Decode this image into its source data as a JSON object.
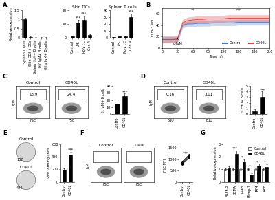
{
  "chart_data": [
    {
      "type": "bar",
      "panel_label": "A",
      "ylabel": "Relative expression",
      "categories": [
        "Spleen T cells",
        "Skin CD8+ DCs",
        "Spleen IgM+ B cells",
        "HK IgM+ B cells",
        "Gills IgM+ B cells"
      ],
      "values": [
        1.0,
        0.06,
        0.02,
        0.02,
        0.02
      ],
      "errors": [
        0.08,
        0.02,
        0.01,
        0.01,
        0.01
      ],
      "color": "#000000",
      "ylim": [
        0,
        1.5
      ],
      "yticks": [
        0,
        0.5,
        1,
        1.5
      ]
    },
    {
      "type": "bar",
      "title": "Skin DCs",
      "categories": [
        "Control",
        "LPS",
        "Poly I:C",
        "Con A"
      ],
      "values": [
        1,
        11,
        13,
        2
      ],
      "errors": [
        0.3,
        2,
        3,
        0.5
      ],
      "significance": [
        null,
        "***",
        "***",
        null
      ],
      "color": "#000000",
      "ylim": [
        0,
        20
      ],
      "yticks": [
        0,
        10,
        20
      ]
    },
    {
      "type": "bar",
      "title": "Spleen T cells",
      "categories": [
        "Control",
        "LPS",
        "Poly I:C",
        "Con A"
      ],
      "values": [
        1,
        2,
        2.5,
        30
      ],
      "errors": [
        0.2,
        0.5,
        0.6,
        5
      ],
      "significance": [
        null,
        null,
        null,
        "***"
      ],
      "color": "#000000",
      "ylim": [
        0,
        40
      ],
      "yticks": [
        0,
        10,
        20,
        30,
        40
      ]
    },
    {
      "type": "line",
      "panel_label": "B",
      "xlabel": "Time (s)",
      "ylabel": "Fluo-3 MFI",
      "x": [
        0,
        10,
        20,
        30,
        40,
        50,
        60,
        70,
        80,
        90,
        100,
        110,
        120,
        130,
        140,
        150,
        160,
        170,
        180,
        190,
        200,
        210
      ],
      "series": [
        {
          "name": "Control",
          "color": "#4a78c2",
          "values": [
            15,
            15,
            15,
            15,
            40,
            42,
            42,
            43,
            43,
            43,
            44,
            44,
            44,
            44,
            44,
            45,
            45,
            45,
            45,
            45,
            45,
            45
          ],
          "errors": [
            5,
            5,
            5,
            5,
            5,
            5,
            5,
            5,
            5,
            5,
            5,
            5,
            5,
            5,
            5,
            5,
            5,
            5,
            5,
            5,
            5,
            5
          ]
        },
        {
          "name": "CD40L",
          "color": "#e03a3a",
          "values": [
            15,
            15,
            15,
            16,
            44,
            48,
            49,
            50,
            50,
            51,
            51,
            51,
            51,
            52,
            52,
            52,
            52,
            52,
            52,
            52,
            52,
            52
          ],
          "errors": [
            6,
            6,
            6,
            6,
            6,
            6,
            6,
            6,
            6,
            6,
            6,
            6,
            6,
            6,
            6,
            6,
            6,
            6,
            6,
            6,
            6,
            6
          ]
        }
      ],
      "xlim": [
        0,
        210
      ],
      "xticks": [
        0,
        30,
        60,
        90,
        120,
        150,
        180,
        210
      ],
      "ylim": [
        0,
        70
      ],
      "yticks": [
        0,
        20,
        40,
        60
      ],
      "legend": "lower right",
      "arrow_annotation": {
        "text": "α-IgM",
        "x": 30
      },
      "significance_brackets": [
        {
          "text": "**",
          "x": [
            30,
            90
          ]
        },
        {
          "text": "***",
          "x": [
            90,
            210
          ]
        }
      ]
    },
    {
      "type": "flow_plot",
      "panel_label": "C",
      "xlabel": "FSC",
      "ylabel": "IgM",
      "tick_labels": false,
      "plots": [
        {
          "title": "Control",
          "gate_value": 13.9
        },
        {
          "title": "CD40L",
          "gate_value": 24.4
        }
      ]
    },
    {
      "type": "bar",
      "ylabel": "% IgM+ B cells",
      "categories": [
        "Control",
        "CD40L"
      ],
      "values": [
        15,
        25
      ],
      "errors": [
        3,
        4
      ],
      "significance": [
        null,
        "***"
      ],
      "color": "#000000",
      "ylim": [
        0,
        40
      ],
      "yticks": [
        0,
        10,
        20,
        30,
        40
      ]
    },
    {
      "type": "flow_plot",
      "panel_label": "D",
      "xlabel": "EdU",
      "ylabel": "IgM",
      "tick_labels": false,
      "plots": [
        {
          "title": "Control",
          "gate_value": 0.16
        },
        {
          "title": "CD40L",
          "gate_value": 3.01
        }
      ]
    },
    {
      "type": "bar",
      "ylabel": "% EdU+ B cells",
      "categories": [
        "Control",
        "CD40L"
      ],
      "values": [
        0.5,
        3.0
      ],
      "errors": [
        0.3,
        1.0
      ],
      "significance": [
        null,
        "***"
      ],
      "color": "#000000",
      "ylim": [
        0,
        5
      ],
      "yticks": [
        0,
        1,
        2,
        3,
        4,
        5
      ]
    },
    {
      "type": "elispot",
      "panel_label": "E",
      "wells": [
        {
          "title": "Control",
          "count": 187
        },
        {
          "title": "CD40L",
          "count": 424
        }
      ]
    },
    {
      "type": "bar",
      "ylabel": "Spot forming units",
      "categories": [
        "Control",
        "CD40L"
      ],
      "values": [
        190,
        430
      ],
      "errors": [
        20,
        50
      ],
      "significance": [
        null,
        "***"
      ],
      "color": "#000000",
      "ylim": [
        0,
        600
      ],
      "yticks": [
        0,
        200,
        400,
        600
      ]
    },
    {
      "type": "flow_plot",
      "panel_label": "F",
      "xlabel": "FSC",
      "ylabel": "IgM",
      "tick_labels": false,
      "plots": [
        {
          "title": "Control"
        },
        {
          "title": "CD40L"
        }
      ]
    },
    {
      "type": "paired",
      "ylabel": "FSC MFI",
      "categories": [
        "Control",
        "CD40L"
      ],
      "values": [
        [
          800,
          1100
        ],
        [
          850,
          1150
        ],
        [
          900,
          1200
        ],
        [
          820,
          1080
        ],
        [
          870,
          1180
        ],
        [
          780,
          1050
        ]
      ],
      "significance": "***",
      "color": "#000000",
      "ylim": [
        0,
        1500
      ],
      "yticks": [
        0,
        500,
        1000,
        1500
      ]
    },
    {
      "type": "grouped_bar",
      "panel_label": "G",
      "ylabel": "Relative expression",
      "categories": [
        "BAFF-R",
        "BCMA",
        "PAX5",
        "Blimp-1",
        "IRF4",
        "IRF8"
      ],
      "series": [
        {
          "name": "Control",
          "color": "#ffffff",
          "values": [
            1,
            1,
            1,
            1,
            1,
            1
          ],
          "errors": [
            0.1,
            0.1,
            0.1,
            0.1,
            0.1,
            0.1
          ]
        },
        {
          "name": "CD40L",
          "color": "#000000",
          "values": [
            1.1,
            2.2,
            1.6,
            0.6,
            1.3,
            1.2
          ],
          "errors": [
            0.15,
            0.3,
            0.2,
            0.1,
            0.15,
            0.2
          ]
        }
      ],
      "significance": [
        null,
        "***",
        "*",
        "*",
        "*",
        "*"
      ],
      "legend": "upper right",
      "ylim": [
        0,
        3
      ],
      "yticks": [
        0,
        1,
        2,
        3
      ]
    }
  ]
}
